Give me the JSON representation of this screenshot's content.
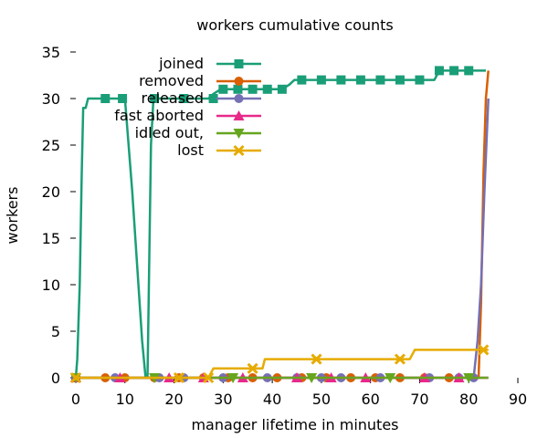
{
  "chart_data": {
    "type": "line",
    "title": "workers cumulative counts",
    "xlabel": "manager lifetime in minutes",
    "ylabel": "workers",
    "xlim": [
      0,
      90
    ],
    "ylim": [
      0,
      35
    ],
    "xticks": [
      0,
      10,
      20,
      30,
      40,
      50,
      60,
      70,
      80,
      90
    ],
    "yticks": [
      0,
      5,
      10,
      15,
      20,
      25,
      30,
      35
    ],
    "grid": false,
    "legend": "top-left",
    "series": [
      {
        "name": "joined",
        "color": "#1a9e77",
        "marker": "square",
        "points": [
          [
            0,
            0
          ],
          [
            0.3,
            2
          ],
          [
            0.8,
            10
          ],
          [
            1.2,
            22
          ],
          [
            1.5,
            29
          ],
          [
            2,
            29
          ],
          [
            2.5,
            30
          ],
          [
            5,
            30
          ],
          [
            8,
            30
          ],
          [
            9.5,
            30
          ],
          [
            10,
            30
          ],
          [
            11.5,
            20
          ],
          [
            12.5,
            12
          ],
          [
            13.5,
            4
          ],
          [
            14.2,
            0
          ],
          [
            14.6,
            0
          ],
          [
            15.3,
            25
          ],
          [
            15.8,
            30
          ],
          [
            20,
            30
          ],
          [
            25,
            30
          ],
          [
            27,
            30
          ],
          [
            28,
            30.5
          ],
          [
            29.5,
            31
          ],
          [
            33,
            31
          ],
          [
            36,
            31
          ],
          [
            37,
            31
          ],
          [
            40,
            31
          ],
          [
            42,
            31
          ],
          [
            43.5,
            31.5
          ],
          [
            44.5,
            32
          ],
          [
            48,
            32
          ],
          [
            52,
            32
          ],
          [
            56,
            32
          ],
          [
            60,
            32
          ],
          [
            64,
            32
          ],
          [
            68,
            32
          ],
          [
            72,
            32
          ],
          [
            73,
            32
          ],
          [
            74,
            33
          ],
          [
            77,
            33
          ],
          [
            80,
            33
          ],
          [
            82,
            33
          ],
          [
            83.5,
            33
          ]
        ],
        "markers": [
          [
            0,
            0
          ],
          [
            6,
            30
          ],
          [
            9.5,
            30
          ],
          [
            16,
            30
          ],
          [
            22,
            30
          ],
          [
            28,
            30
          ],
          [
            30,
            31
          ],
          [
            33,
            31
          ],
          [
            36,
            31
          ],
          [
            39,
            31
          ],
          [
            42,
            31
          ],
          [
            46,
            32
          ],
          [
            50,
            32
          ],
          [
            54,
            32
          ],
          [
            58,
            32
          ],
          [
            62,
            32
          ],
          [
            66,
            32
          ],
          [
            70,
            32
          ],
          [
            74,
            33
          ],
          [
            77,
            33
          ],
          [
            80,
            33
          ]
        ]
      },
      {
        "name": "removed",
        "color": "#d95f02",
        "marker": "circle",
        "points": [
          [
            0,
            0
          ],
          [
            82,
            0
          ],
          [
            82.5,
            8
          ],
          [
            83,
            22
          ],
          [
            83.5,
            30
          ],
          [
            84,
            33
          ]
        ],
        "markers": [
          [
            0,
            0
          ],
          [
            6,
            0
          ],
          [
            10,
            0
          ],
          [
            16,
            0
          ],
          [
            21,
            0
          ],
          [
            26,
            0
          ],
          [
            31,
            0
          ],
          [
            36,
            0
          ],
          [
            41,
            0
          ],
          [
            46,
            0
          ],
          [
            51,
            0
          ],
          [
            56,
            0
          ],
          [
            61,
            0
          ],
          [
            66,
            0
          ],
          [
            71,
            0
          ],
          [
            76,
            0
          ]
        ]
      },
      {
        "name": "released",
        "color": "#7570b3",
        "marker": "circle",
        "points": [
          [
            0,
            0
          ],
          [
            81,
            0
          ],
          [
            81.8,
            4
          ],
          [
            82.5,
            10
          ],
          [
            83.2,
            20
          ],
          [
            84,
            30
          ]
        ],
        "markers": [
          [
            0,
            0
          ],
          [
            8,
            0
          ],
          [
            17,
            0
          ],
          [
            22,
            0
          ],
          [
            30,
            0
          ],
          [
            39,
            0
          ],
          [
            45,
            0
          ],
          [
            50,
            0
          ],
          [
            54,
            0
          ],
          [
            62,
            0
          ],
          [
            72,
            0
          ],
          [
            78,
            0
          ],
          [
            81,
            0
          ]
        ]
      },
      {
        "name": "fast aborted",
        "color": "#e7298a",
        "marker": "triangle-up",
        "points": [
          [
            0,
            0
          ],
          [
            84,
            0
          ]
        ],
        "markers": [
          [
            0,
            0
          ],
          [
            9,
            0
          ],
          [
            19,
            0
          ],
          [
            26,
            0
          ],
          [
            34,
            0
          ],
          [
            45,
            0
          ],
          [
            52,
            0
          ],
          [
            59,
            0
          ],
          [
            71,
            0
          ],
          [
            78,
            0
          ]
        ]
      },
      {
        "name": "idled out,",
        "color": "#66a61e",
        "marker": "triangle-down",
        "points": [
          [
            0,
            0
          ],
          [
            84,
            0
          ]
        ],
        "markers": [
          [
            0,
            0
          ],
          [
            16,
            0
          ],
          [
            32,
            0
          ],
          [
            48,
            0
          ],
          [
            64,
            0
          ],
          [
            80,
            0
          ]
        ]
      },
      {
        "name": "lost",
        "color": "#e6ab02",
        "marker": "x",
        "points": [
          [
            0,
            0
          ],
          [
            27,
            0
          ],
          [
            28,
            1
          ],
          [
            38,
            1
          ],
          [
            38.5,
            2
          ],
          [
            68,
            2
          ],
          [
            69,
            3
          ],
          [
            84,
            3
          ]
        ],
        "markers": [
          [
            0,
            0
          ],
          [
            21,
            0
          ],
          [
            27,
            0
          ],
          [
            36,
            1
          ],
          [
            49,
            2
          ],
          [
            66,
            2
          ],
          [
            83,
            3
          ]
        ]
      }
    ]
  }
}
